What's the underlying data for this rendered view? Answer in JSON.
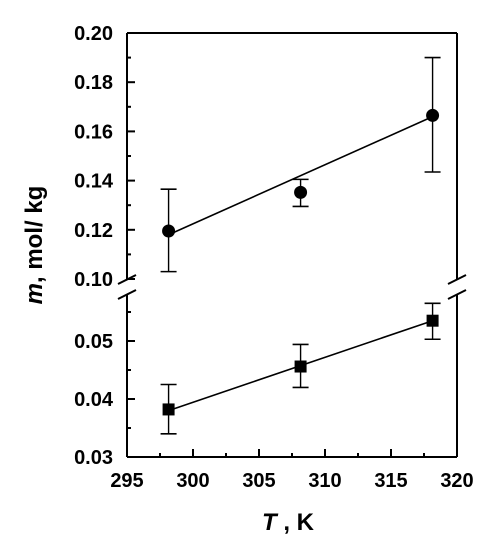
{
  "chart_data": {
    "type": "scatter",
    "broken_y_axis": true,
    "xlabel": "T , K",
    "xlabel_italic": "T",
    "xlabel_rest": " , K",
    "ylabel_italic": "m",
    "ylabel_rest": ", mol/ kg",
    "xlim": [
      295,
      320
    ],
    "x_ticks": [
      "295",
      "300",
      "305",
      "310",
      "315",
      "320"
    ],
    "y_upper_range": [
      0.1,
      0.2
    ],
    "y_upper_ticks": [
      "0.10",
      "0.12",
      "0.14",
      "0.16",
      "0.18",
      "0.20"
    ],
    "y_lower_range": [
      0.03,
      0.055
    ],
    "y_lower_ticks": [
      "0.03",
      "0.04",
      "0.05"
    ],
    "grid": false,
    "series": [
      {
        "marker": "circle",
        "color": "#000000",
        "x": [
          298.15,
          308.15,
          318.15
        ],
        "y": [
          0.1195,
          0.1352,
          0.1665
        ],
        "err_upper": [
          0.1365,
          0.1405,
          0.19
        ],
        "err_lower": [
          0.103,
          0.1295,
          0.1435
        ],
        "fit_line": [
          [
            298.15,
            0.118
          ],
          [
            318.15,
            0.166
          ]
        ]
      },
      {
        "marker": "square",
        "color": "#000000",
        "x": [
          298.15,
          308.15,
          318.15
        ],
        "y": [
          0.0382,
          0.0456,
          0.0535
        ],
        "err_upper": [
          0.0425,
          0.0494,
          0.0565
        ],
        "err_lower": [
          0.034,
          0.042,
          0.0503
        ],
        "fit_line": [
          [
            298.15,
            0.038
          ],
          [
            318.15,
            0.0535
          ]
        ]
      }
    ]
  }
}
